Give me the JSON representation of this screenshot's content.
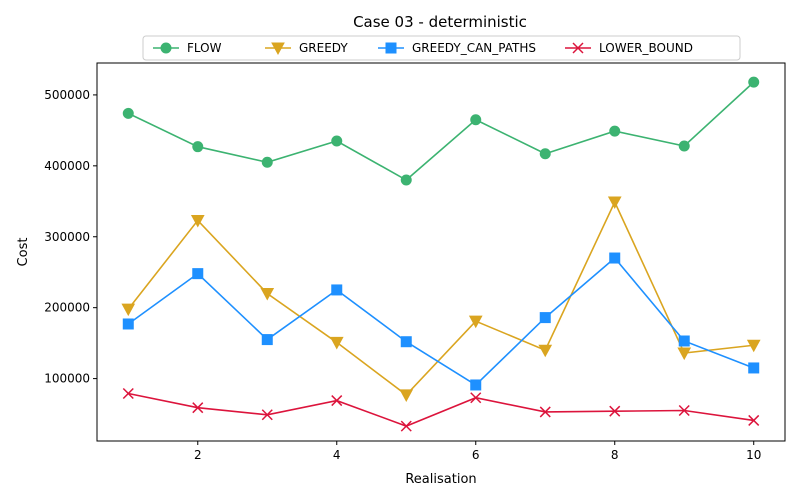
{
  "chart_data": {
    "type": "line",
    "title": "Case 03 - deterministic",
    "xlabel": "Realisation",
    "ylabel": "Cost",
    "x": [
      1,
      2,
      3,
      4,
      5,
      6,
      7,
      8,
      9,
      10
    ],
    "xlim": [
      0.55,
      10.45
    ],
    "ylim": [
      12000,
      545000
    ],
    "xticks": [
      2,
      4,
      6,
      8,
      10
    ],
    "yticks": [
      100000,
      200000,
      300000,
      400000,
      500000
    ],
    "grid": false,
    "legend_position": "top-center",
    "series": [
      {
        "name": "FLOW",
        "color": "#3cb371",
        "marker": "circle",
        "values": [
          474000,
          427000,
          405000,
          435000,
          380000,
          465000,
          417000,
          449000,
          428000,
          518000
        ]
      },
      {
        "name": "GREEDY",
        "color": "#daa520",
        "marker": "triangle-down",
        "values": [
          198000,
          323000,
          220000,
          151000,
          77000,
          181000,
          140000,
          349000,
          136000,
          147000
        ]
      },
      {
        "name": "GREEDY_CAN_PATHS",
        "color": "#1e90ff",
        "marker": "square",
        "values": [
          177000,
          248000,
          155000,
          225000,
          152000,
          91000,
          186000,
          270000,
          153000,
          115000
        ]
      },
      {
        "name": "LOWER_BOUND",
        "color": "#dc143c",
        "marker": "x",
        "values": [
          79000,
          59000,
          49000,
          69000,
          33000,
          73000,
          53000,
          54000,
          55000,
          41000
        ]
      }
    ]
  }
}
